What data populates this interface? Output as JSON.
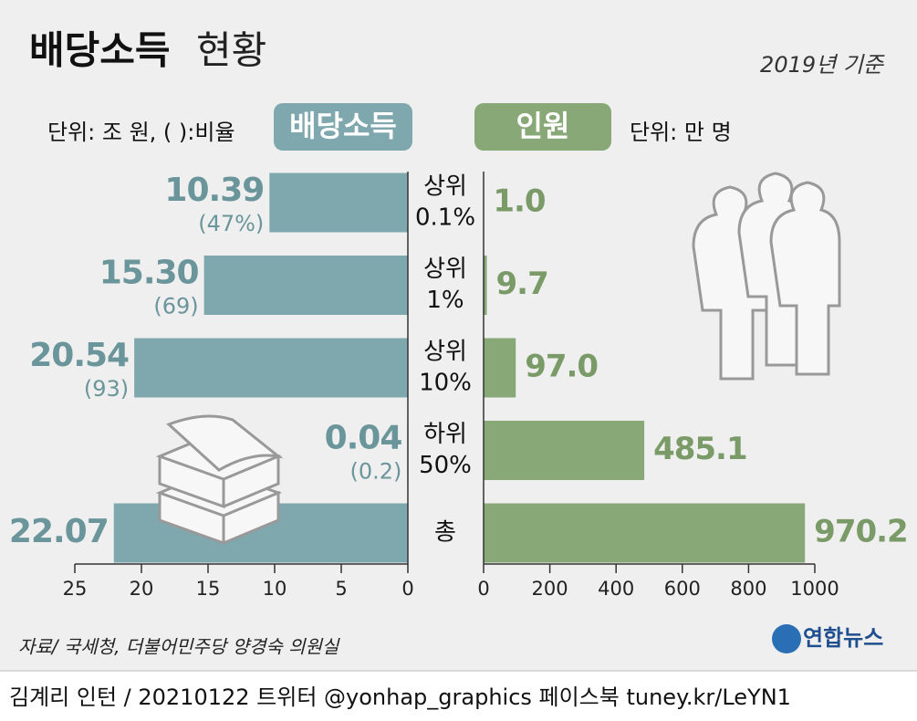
{
  "chart_data": {
    "type": "bar",
    "title": "배당소득",
    "title_suffix": "현황",
    "note": "2019년 기준",
    "left_unit": "단위: 조 원, ( ):비율",
    "right_unit": "단위: 만 명",
    "categories": [
      [
        "상위",
        "0.1%"
      ],
      [
        "상위",
        "1%"
      ],
      [
        "상위",
        "10%"
      ],
      [
        "하위",
        "50%"
      ],
      [
        "총"
      ]
    ],
    "series": [
      {
        "name": "배당소득",
        "color": "#7fa8ae",
        "label_color": "#6a959b",
        "values": [
          10.39,
          15.3,
          20.54,
          0.04,
          22.07
        ],
        "value_labels": [
          "10.39",
          "15.30",
          "20.54",
          "0.04",
          "22.07"
        ],
        "share_labels": [
          "(47%)",
          "(69)",
          "(93)",
          "(0.2)",
          null
        ],
        "xlim": [
          0,
          25
        ],
        "xticks": [
          0,
          5,
          10,
          15,
          20,
          25
        ]
      },
      {
        "name": "인원",
        "color": "#88a877",
        "label_color": "#7a9b68",
        "values": [
          1.0,
          9.7,
          97.0,
          485.1,
          970.2
        ],
        "value_labels": [
          "1.0",
          "9.7",
          "97.0",
          "485.1",
          "970.2"
        ],
        "xlim": [
          0,
          1000
        ],
        "xticks": [
          0,
          200,
          400,
          600,
          800,
          1000
        ]
      }
    ],
    "source": "자료/ 국세청, 더불어민주당 양경숙 의원실",
    "logo": "연합뉴스",
    "credit": "김계리 인턴 / 20210122  트위터 @yonhap_graphics  페이스북 tuney.kr/LeYN1"
  }
}
